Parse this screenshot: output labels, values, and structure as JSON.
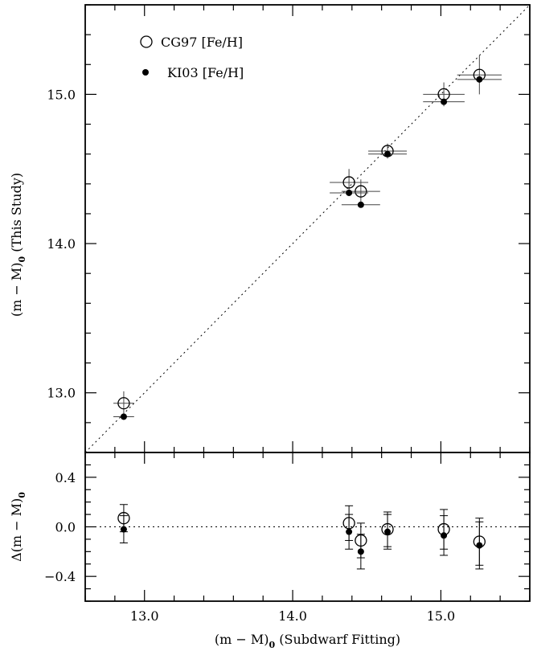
{
  "chart_data": [
    {
      "type": "scatter",
      "panel": "top",
      "xlabel": "",
      "ylabel": "(m − M)",
      "ylabel_sub": "0",
      "ylabel_suffix": " (This Study)",
      "xlim": [
        12.6,
        15.6
      ],
      "ylim": [
        12.6,
        15.6
      ],
      "xticks_major": [
        13.0,
        14.0,
        15.0
      ],
      "yticks_major": [
        13.0,
        14.0,
        15.0
      ],
      "ytick_labels": [
        "13.0",
        "14.0",
        "15.0"
      ],
      "reference_line": "y = x (dotted)",
      "legend_position": "top-left",
      "series": [
        {
          "name": "CG97 [Fe/H]",
          "marker": "open-circle",
          "points": [
            {
              "x": 12.86,
              "y": 12.93,
              "xerr": 0.07,
              "yerr": 0.08
            },
            {
              "x": 14.38,
              "y": 14.41,
              "xerr": 0.13,
              "yerr": 0.09
            },
            {
              "x": 14.46,
              "y": 14.35,
              "xerr": 0.13,
              "yerr": 0.08
            },
            {
              "x": 14.64,
              "y": 14.62,
              "xerr": 0.13,
              "yerr": 0.05
            },
            {
              "x": 15.02,
              "y": 15.0,
              "xerr": 0.14,
              "yerr": 0.08
            },
            {
              "x": 15.26,
              "y": 15.13,
              "xerr": 0.15,
              "yerr": 0.13
            }
          ]
        },
        {
          "name": "KI03 [Fe/H]",
          "marker": "filled-circle",
          "points": [
            {
              "x": 12.86,
              "y": 12.84,
              "xerr": 0.07,
              "yerr": 0.08
            },
            {
              "x": 14.38,
              "y": 14.34,
              "xerr": 0.13,
              "yerr": 0.09
            },
            {
              "x": 14.46,
              "y": 14.26,
              "xerr": 0.13,
              "yerr": 0.08
            },
            {
              "x": 14.64,
              "y": 14.6,
              "xerr": 0.13,
              "yerr": 0.05
            },
            {
              "x": 15.02,
              "y": 14.95,
              "xerr": 0.14,
              "yerr": 0.08
            },
            {
              "x": 15.26,
              "y": 15.1,
              "xerr": 0.15,
              "yerr": 0.13
            }
          ]
        }
      ]
    },
    {
      "type": "scatter",
      "panel": "bottom",
      "xlabel": "(m − M)",
      "xlabel_sub": "0",
      "xlabel_suffix": " (Subdwarf Fitting)",
      "ylabel": "Δ(m − M)",
      "ylabel_sub": "0",
      "xlim": [
        12.6,
        15.6
      ],
      "ylim": [
        -0.6,
        0.6
      ],
      "xticks_major": [
        13.0,
        14.0,
        15.0
      ],
      "xtick_labels": [
        "13.0",
        "14.0",
        "15.0"
      ],
      "yticks_major": [
        -0.4,
        0.0,
        0.4
      ],
      "ytick_labels": [
        "−0.4",
        "0.0",
        "0.4"
      ],
      "reference_line": "y = 0 (dotted)",
      "series": [
        {
          "name": "CG97 [Fe/H]",
          "marker": "open-circle",
          "points": [
            {
              "x": 12.86,
              "y": 0.07,
              "yerr": 0.11
            },
            {
              "x": 14.38,
              "y": 0.03,
              "yerr": 0.14
            },
            {
              "x": 14.46,
              "y": -0.11,
              "yerr": 0.14
            },
            {
              "x": 14.64,
              "y": -0.02,
              "yerr": 0.14
            },
            {
              "x": 15.02,
              "y": -0.02,
              "yerr": 0.16
            },
            {
              "x": 15.26,
              "y": -0.12,
              "yerr": 0.19
            }
          ]
        },
        {
          "name": "KI03 [Fe/H]",
          "marker": "filled-circle",
          "points": [
            {
              "x": 12.86,
              "y": -0.02,
              "yerr": 0.11
            },
            {
              "x": 14.38,
              "y": -0.04,
              "yerr": 0.14
            },
            {
              "x": 14.46,
              "y": -0.2,
              "yerr": 0.14
            },
            {
              "x": 14.64,
              "y": -0.04,
              "yerr": 0.14
            },
            {
              "x": 15.02,
              "y": -0.07,
              "yerr": 0.16
            },
            {
              "x": 15.26,
              "y": -0.15,
              "yerr": 0.19
            }
          ]
        }
      ]
    }
  ]
}
